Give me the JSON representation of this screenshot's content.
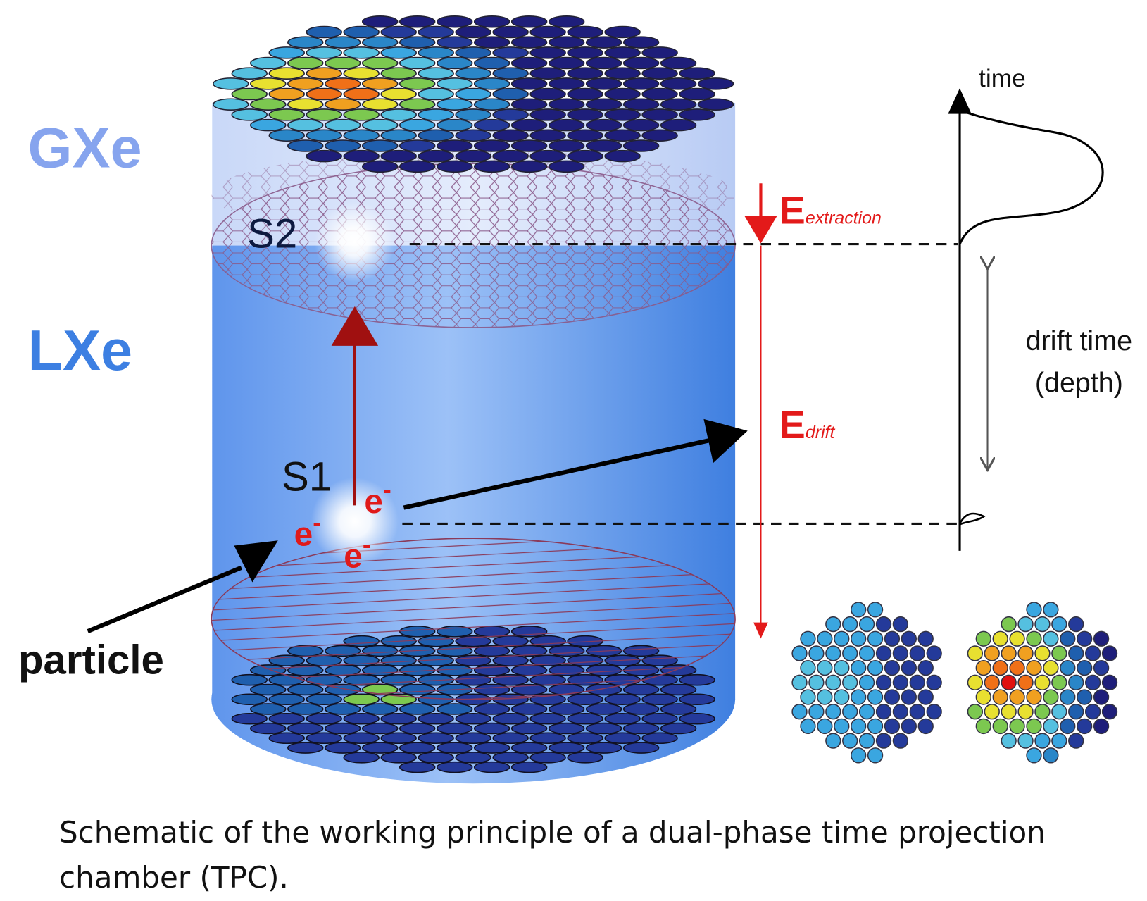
{
  "labels": {
    "gas_phase": "GXe",
    "liquid_phase": "LXe",
    "s2": "S2",
    "s1": "S1",
    "particle": "particle",
    "time_axis": "time",
    "drift_time": "drift time",
    "depth": "(depth)"
  },
  "fields": {
    "extraction": {
      "symbol": "E",
      "subscript": "extraction"
    },
    "drift": {
      "symbol": "E",
      "subscript": "drift"
    }
  },
  "electrons": [
    {
      "base": "e",
      "sup": "-"
    },
    {
      "base": "e",
      "sup": "-"
    },
    {
      "base": "e",
      "sup": "-"
    }
  ],
  "caption": "Schematic of the working principle of a dual-phase time projection chamber (TPC)."
}
